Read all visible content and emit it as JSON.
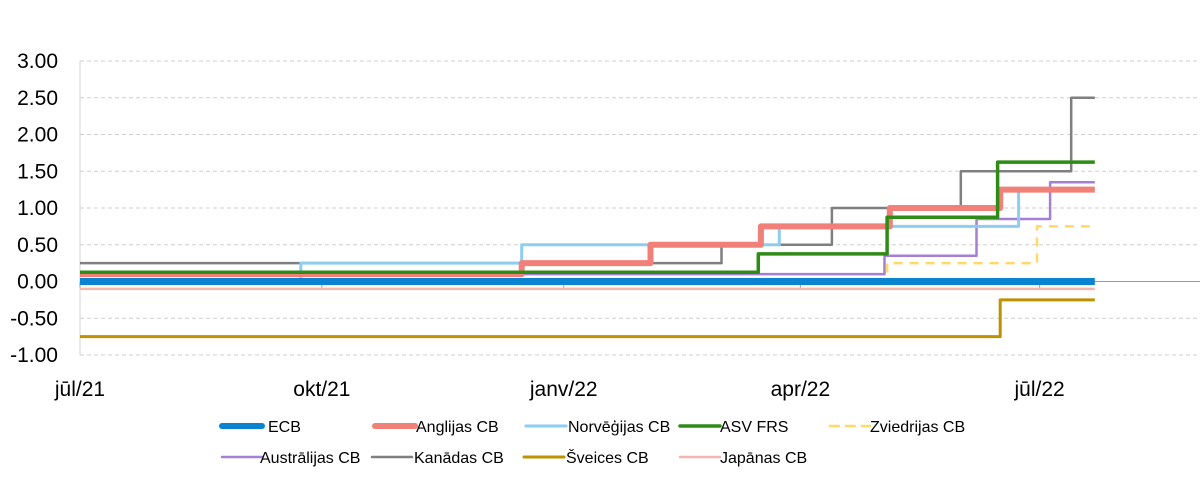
{
  "chart_data": {
    "type": "line",
    "title": "",
    "xlabel": "",
    "ylabel": "",
    "ylim": [
      -1.0,
      3.0
    ],
    "yticks": [
      "3.00",
      "2.50",
      "2.00",
      "1.50",
      "1.00",
      "0.50",
      "0.00",
      "-0.50",
      "-1.00"
    ],
    "ytick_values": [
      3.0,
      2.5,
      2.0,
      1.5,
      1.0,
      0.5,
      0.0,
      -0.5,
      -1.0
    ],
    "xlim": [
      "2021-07-01",
      "2022-08-31"
    ],
    "xticks": [
      {
        "label": "jūl/21",
        "date": "2021-07-01"
      },
      {
        "label": "okt/21",
        "date": "2021-10-01"
      },
      {
        "label": "janv/22",
        "date": "2022-01-01"
      },
      {
        "label": "apr/22",
        "date": "2022-04-01"
      },
      {
        "label": "jūl/22",
        "date": "2022-07-01"
      }
    ],
    "grid": true,
    "legend_position": "bottom",
    "series": [
      {
        "name": "Kanādas CB",
        "color": "#7f7f7f",
        "width": 2.5,
        "dash": "",
        "points": [
          [
            "2021-07-01",
            0.25
          ],
          [
            "2022-03-02",
            0.5
          ],
          [
            "2022-04-13",
            1.0
          ],
          [
            "2022-06-01",
            1.5
          ],
          [
            "2022-07-13",
            2.5
          ],
          [
            "2022-07-22",
            2.5
          ]
        ]
      },
      {
        "name": "Austrālijas CB",
        "color": "#a57fd6",
        "width": 2.5,
        "dash": "",
        "points": [
          [
            "2021-07-01",
            0.1
          ],
          [
            "2022-05-03",
            0.35
          ],
          [
            "2022-06-07",
            0.85
          ],
          [
            "2022-07-05",
            1.35
          ],
          [
            "2022-07-22",
            1.35
          ]
        ]
      },
      {
        "name": "Norvēģijas CB",
        "color": "#8ecdf2",
        "width": 3,
        "dash": "",
        "points": [
          [
            "2021-07-01",
            0.0
          ],
          [
            "2021-09-23",
            0.25
          ],
          [
            "2021-12-16",
            0.5
          ],
          [
            "2022-03-24",
            0.75
          ],
          [
            "2022-06-23",
            1.25
          ],
          [
            "2022-07-22",
            1.25
          ]
        ]
      },
      {
        "name": "Anglijas CB",
        "color": "#f08078",
        "width": 6,
        "dash": "",
        "points": [
          [
            "2021-07-01",
            0.1
          ],
          [
            "2021-12-16",
            0.25
          ],
          [
            "2022-02-03",
            0.5
          ],
          [
            "2022-03-17",
            0.75
          ],
          [
            "2022-05-05",
            1.0
          ],
          [
            "2022-06-16",
            1.25
          ],
          [
            "2022-07-22",
            1.25
          ]
        ]
      },
      {
        "name": "ASV FRS",
        "color": "#2e8b16",
        "width": 3.5,
        "dash": "",
        "points": [
          [
            "2021-07-01",
            0.125
          ],
          [
            "2022-03-16",
            0.375
          ],
          [
            "2022-05-04",
            0.875
          ],
          [
            "2022-06-15",
            1.625
          ],
          [
            "2022-07-22",
            1.625
          ]
        ]
      },
      {
        "name": "Zviedrijas CB",
        "color": "#ffd966",
        "width": 2.5,
        "dash": "9,7",
        "points": [
          [
            "2021-07-01",
            0.0
          ],
          [
            "2022-05-04",
            0.25
          ],
          [
            "2022-06-30",
            0.75
          ],
          [
            "2022-07-22",
            0.75
          ]
        ]
      },
      {
        "name": "Šveices CB",
        "color": "#bf9000",
        "width": 3,
        "dash": "",
        "points": [
          [
            "2021-07-01",
            -0.75
          ],
          [
            "2022-06-16",
            -0.25
          ],
          [
            "2022-07-22",
            -0.25
          ]
        ]
      },
      {
        "name": "Japānas CB",
        "color": "#f4b6b0",
        "width": 2.5,
        "dash": "",
        "points": [
          [
            "2021-07-01",
            -0.1
          ],
          [
            "2022-07-22",
            -0.1
          ]
        ]
      },
      {
        "name": "ECB",
        "color": "#0a84d0",
        "width": 7,
        "dash": "",
        "points": [
          [
            "2021-07-01",
            0.0
          ],
          [
            "2022-07-22",
            0.0
          ]
        ]
      }
    ],
    "legend": [
      [
        "ECB",
        "Anglijas CB",
        "Norvēģijas CB",
        "ASV FRS",
        "Zviedrijas CB"
      ],
      [
        "Austrālijas CB",
        "Kanādas CB",
        "Šveices CB",
        "Japānas CB"
      ]
    ]
  }
}
